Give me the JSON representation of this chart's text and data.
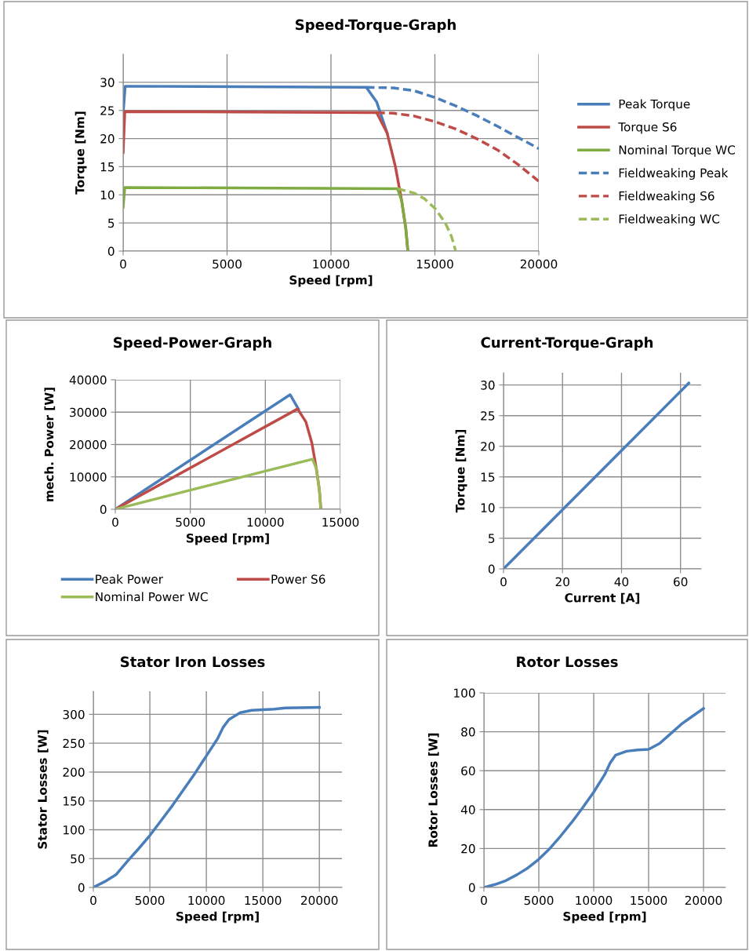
{
  "chart_data": [
    {
      "type": "line",
      "title": "Speed-Torque-Graph",
      "xlabel": "Speed [rpm]",
      "ylabel": "Torque [Nm]",
      "xlim": [
        0,
        20000
      ],
      "xticks": [
        0,
        5000,
        10000,
        15000,
        20000
      ],
      "ylim": [
        0,
        35
      ],
      "yticks": [
        0,
        5,
        10,
        15,
        20,
        25,
        30
      ],
      "grid": true,
      "legend": "right",
      "series": [
        {
          "name": "Peak Torque",
          "color": "#4a7ebb",
          "x": [
            0,
            100,
            11700,
            12200,
            12700
          ],
          "values": [
            24.5,
            29.3,
            29.1,
            26.5,
            21
          ]
        },
        {
          "name": "Torque S6",
          "color": "#be4b48",
          "x": [
            0,
            80,
            12200,
            12700,
            13100,
            13400,
            13600,
            13700
          ],
          "values": [
            17.5,
            24.8,
            24.6,
            21,
            15,
            9,
            4,
            0
          ]
        },
        {
          "name": "Nominal Torque WC",
          "color": "#7eac42",
          "x": [
            0,
            80,
            13200,
            13400,
            13600,
            13700
          ],
          "values": [
            7.8,
            11.3,
            11.1,
            9,
            4,
            0
          ]
        },
        {
          "name": "Fieldweaking Peak",
          "color": "#4a7ebb",
          "line_style": "dashed",
          "x": [
            11700,
            13000,
            14000,
            15000,
            16000,
            17000,
            18000,
            19000,
            20000
          ],
          "values": [
            29.1,
            29,
            28.5,
            27.3,
            25.8,
            24.1,
            22.2,
            20.2,
            18.2
          ]
        },
        {
          "name": "Fieldweaking S6",
          "color": "#be4b48",
          "line_style": "dashed",
          "x": [
            12200,
            13000,
            14000,
            15000,
            16000,
            17000,
            18000,
            19000,
            20000
          ],
          "values": [
            24.6,
            24.5,
            24,
            23,
            21.7,
            20,
            18,
            15.4,
            12.4
          ]
        },
        {
          "name": "Fieldweaking WC",
          "color": "#9bbb59",
          "line_style": "dashed",
          "x": [
            13200,
            14000,
            14500,
            15000,
            15500,
            15800,
            16000
          ],
          "values": [
            11.1,
            10.3,
            9.3,
            7.6,
            5,
            2.6,
            0
          ]
        }
      ]
    },
    {
      "type": "line",
      "title": "Speed-Power-Graph",
      "xlabel": "Speed [rpm]",
      "ylabel": "mech. Power [W]",
      "xlim": [
        0,
        15000
      ],
      "xticks": [
        0,
        5000,
        10000,
        15000
      ],
      "ylim": [
        0,
        40000
      ],
      "yticks": [
        0,
        10000,
        20000,
        30000,
        40000
      ],
      "grid": true,
      "legend": "bottom",
      "series": [
        {
          "name": "Peak Power",
          "color": "#4a7ebb",
          "x": [
            0,
            11650,
            12200
          ],
          "values": [
            0,
            35400,
            31000
          ]
        },
        {
          "name": "Power S6",
          "color": "#be4b48",
          "x": [
            0,
            12150,
            12700,
            13100,
            13400,
            13600,
            13700
          ],
          "values": [
            0,
            31000,
            27000,
            20500,
            12500,
            6000,
            0
          ]
        },
        {
          "name": "Nominal Power WC",
          "color": "#9bbb59",
          "x": [
            0,
            13150,
            13400,
            13600,
            13700
          ],
          "values": [
            0,
            15500,
            12500,
            6000,
            0
          ]
        }
      ]
    },
    {
      "type": "line",
      "title": "Current-Torque-Graph",
      "xlabel": "Current [A]",
      "ylabel": "Torque [Nm]",
      "xlim": [
        0,
        67
      ],
      "xticks": [
        0,
        20,
        40,
        60
      ],
      "ylim": [
        0,
        32
      ],
      "yticks": [
        0,
        5,
        10,
        15,
        20,
        25,
        30
      ],
      "grid": true,
      "series": [
        {
          "color": "#4a7ebb",
          "x": [
            0,
            62.8
          ],
          "values": [
            0,
            30.3
          ]
        }
      ]
    },
    {
      "type": "line",
      "title": "Stator Iron Losses",
      "xlabel": "Speed [rpm]",
      "ylabel": "Stator Losses [W]",
      "xlim": [
        0,
        22000
      ],
      "xticks": [
        0,
        5000,
        10000,
        15000,
        20000
      ],
      "ylim": [
        0,
        340
      ],
      "yticks": [
        0,
        50,
        100,
        150,
        200,
        250,
        300
      ],
      "grid": true,
      "series": [
        {
          "color": "#4a7ebb",
          "x": [
            0,
            1000,
            2000,
            3000,
            4000,
            5000,
            6000,
            7000,
            8000,
            9000,
            10000,
            11000,
            11500,
            12000,
            13000,
            14000,
            16000,
            17000,
            20000
          ],
          "values": [
            0,
            10,
            22,
            45,
            67,
            90,
            116,
            142,
            170,
            198,
            228,
            258,
            278,
            291,
            303,
            307,
            309,
            311,
            312
          ]
        }
      ]
    },
    {
      "type": "line",
      "title": "Rotor Losses",
      "xlabel": "Speed [rpm]",
      "ylabel": "Rotor Losses [W]",
      "xlim": [
        0,
        22000
      ],
      "xticks": [
        0,
        5000,
        10000,
        15000,
        20000
      ],
      "ylim": [
        0,
        100
      ],
      "yticks": [
        0,
        20,
        40,
        60,
        80,
        100
      ],
      "grid": true,
      "series": [
        {
          "color": "#4a7ebb",
          "x": [
            0,
            1000,
            2000,
            3000,
            4000,
            5000,
            6000,
            7000,
            8000,
            9000,
            10000,
            11000,
            11500,
            12000,
            13000,
            14000,
            15000,
            16000,
            17000,
            18000,
            19000,
            20000
          ],
          "values": [
            0,
            1.5,
            3.5,
            6.5,
            10,
            14.5,
            20,
            26.5,
            33.5,
            41,
            49,
            58,
            64,
            68,
            70,
            70.7,
            71,
            74,
            79,
            84,
            88,
            92
          ]
        }
      ]
    }
  ]
}
